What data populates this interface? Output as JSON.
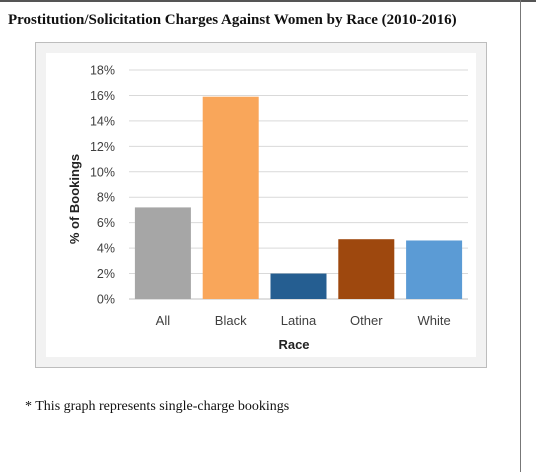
{
  "title": "Prostitution/Solicitation Charges Against Women by Race (2010-2016)",
  "footnote": "* This graph represents single-charge bookings",
  "chart_data": {
    "type": "bar",
    "categories": [
      "All",
      "Black",
      "Latina",
      "Other",
      "White"
    ],
    "values": [
      7.2,
      15.9,
      2.0,
      4.7,
      4.6
    ],
    "colors": [
      "#a6a6a6",
      "#f9a65a",
      "#255e91",
      "#9e480e",
      "#5b9bd5"
    ],
    "xlabel": "Race",
    "ylabel": "% of Bookings",
    "ylim": [
      0,
      18
    ],
    "yticks": [
      0,
      2,
      4,
      6,
      8,
      10,
      12,
      14,
      16,
      18
    ],
    "ytick_suffix": "%",
    "grid": true
  }
}
